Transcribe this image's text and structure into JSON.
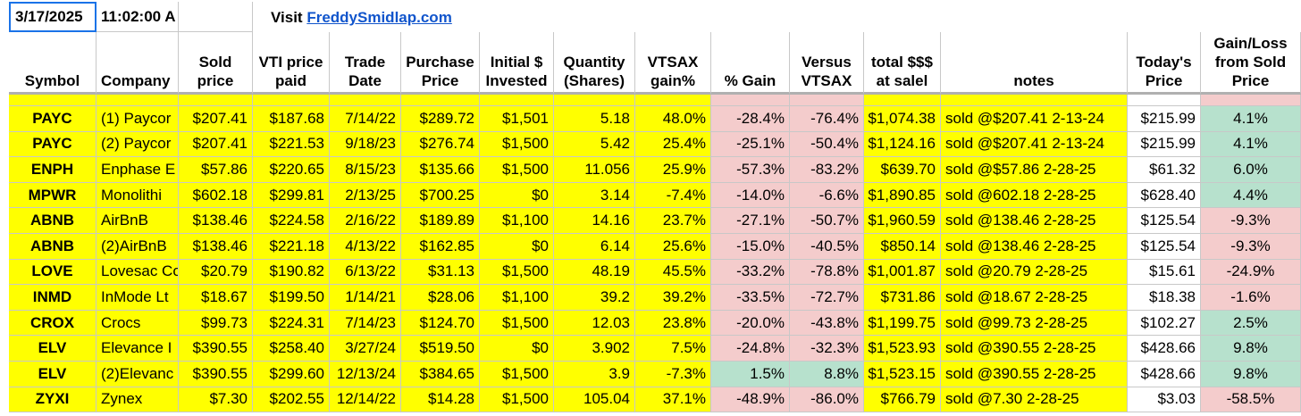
{
  "header": {
    "date": "3/17/2025",
    "time": "11:02:00 A",
    "visit": "Visit",
    "link": "FreddySmidlap.com"
  },
  "table": {
    "columns": [
      "Symbol",
      "Company",
      "Sold\nprice",
      "VTI price\npaid",
      "Trade\nDate",
      "Purchase\nPrice",
      "Initial $\nInvested",
      "Quantity\n(Shares)",
      "VTSAX\ngain%",
      "% Gain",
      "Versus\nVTSAX",
      "total $$$\nat salel",
      "notes",
      "Today's\nPrice",
      "Gain/Loss\nfrom Sold\nPrice"
    ],
    "rows": [
      [
        "PAYC",
        "(1) Paycor",
        "$207.41",
        "$187.68",
        "7/14/22",
        "$289.72",
        "$1,501",
        "5.18",
        "48.0%",
        "-28.4%",
        "-76.4%",
        "$1,074.38",
        "sold @$207.41 2-13-24",
        "$215.99",
        "4.1%"
      ],
      [
        "PAYC",
        "(2) Paycor",
        "$207.41",
        "$221.53",
        "9/18/23",
        "$276.74",
        "$1,500",
        "5.42",
        "25.4%",
        "-25.1%",
        "-50.4%",
        "$1,124.16",
        "sold @$207.41 2-13-24",
        "$215.99",
        "4.1%"
      ],
      [
        "ENPH",
        "Enphase E",
        "$57.86",
        "$220.65",
        "8/15/23",
        "$135.66",
        "$1,500",
        "11.056",
        "25.9%",
        "-57.3%",
        "-83.2%",
        "$639.70",
        "sold @$57.86  2-28-25",
        "$61.32",
        "6.0%"
      ],
      [
        "MPWR",
        "Monolithi",
        "$602.18",
        "$299.81",
        "2/13/25",
        "$700.25",
        "$0",
        "3.14",
        "-7.4%",
        "-14.0%",
        "-6.6%",
        "$1,890.85",
        "sold @602.18  2-28-25",
        "$628.40",
        "4.4%"
      ],
      [
        "ABNB",
        "AirBnB",
        "$138.46",
        "$224.58",
        "2/16/22",
        "$189.89",
        "$1,100",
        "14.16",
        "23.7%",
        "-27.1%",
        "-50.7%",
        "$1,960.59",
        "sold @138.46  2-28-25",
        "$125.54",
        "-9.3%"
      ],
      [
        "ABNB",
        "(2)AirBnB",
        "$138.46",
        "$221.18",
        "4/13/22",
        "$162.85",
        "$0",
        "6.14",
        "25.6%",
        "-15.0%",
        "-40.5%",
        "$850.14",
        "sold @138.46  2-28-25",
        "$125.54",
        "-9.3%"
      ],
      [
        "LOVE",
        "Lovesac Co",
        "$20.79",
        "$190.82",
        "6/13/22",
        "$31.13",
        "$1,500",
        "48.19",
        "45.5%",
        "-33.2%",
        "-78.8%",
        "$1,001.87",
        "sold @20.79  2-28-25",
        "$15.61",
        "-24.9%"
      ],
      [
        "INMD",
        "InMode Lt",
        "$18.67",
        "$199.50",
        "1/14/21",
        "$28.06",
        "$1,100",
        "39.2",
        "39.2%",
        "-33.5%",
        "-72.7%",
        "$731.86",
        "sold @18.67  2-28-25",
        "$18.38",
        "-1.6%"
      ],
      [
        "CROX",
        "Crocs",
        "$99.73",
        "$224.31",
        "7/14/23",
        "$124.70",
        "$1,500",
        "12.03",
        "23.8%",
        "-20.0%",
        "-43.8%",
        "$1,199.75",
        "sold @99.73  2-28-25",
        "$102.27",
        "2.5%"
      ],
      [
        "ELV",
        "Elevance I",
        "$390.55",
        "$258.40",
        "3/27/24",
        "$519.50",
        "$0",
        "3.902",
        "7.5%",
        "-24.8%",
        "-32.3%",
        "$1,523.93",
        "sold @390.55  2-28-25",
        "$428.66",
        "9.8%"
      ],
      [
        "ELV",
        "(2)Elevanc",
        "$390.55",
        "$299.60",
        "12/13/24",
        "$384.65",
        "$1,500",
        "3.9",
        "-7.3%",
        "1.5%",
        "8.8%",
        "$1,523.15",
        "sold @390.55  2-28-25",
        "$428.66",
        "9.8%"
      ],
      [
        "ZYXI",
        "Zynex",
        "$7.30",
        "$202.55",
        "12/14/22",
        "$14.28",
        "$1,500",
        "105.04",
        "37.1%",
        "-48.9%",
        "-86.0%",
        "$766.79",
        "sold @7.30  2-28-25",
        "$3.03",
        "-58.5%"
      ]
    ]
  }
}
